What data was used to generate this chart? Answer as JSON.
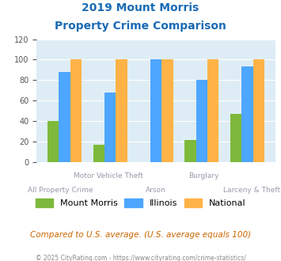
{
  "title_line1": "2019 Mount Morris",
  "title_line2": "Property Crime Comparison",
  "categories": [
    "All Property Crime",
    "Motor Vehicle Theft",
    "Arson",
    "Burglary",
    "Larceny & Theft"
  ],
  "x_labels_top": [
    "",
    "Motor Vehicle Theft",
    "",
    "Burglary",
    ""
  ],
  "x_labels_bottom": [
    "All Property Crime",
    "",
    "Arson",
    "",
    "Larceny & Theft"
  ],
  "mount_morris": [
    40,
    17,
    0,
    21,
    47
  ],
  "illinois": [
    88,
    68,
    100,
    80,
    93
  ],
  "national": [
    100,
    100,
    100,
    100,
    100
  ],
  "colors": {
    "mount_morris": "#7db93b",
    "illinois": "#4da6ff",
    "national": "#ffb347"
  },
  "ylim": [
    0,
    120
  ],
  "yticks": [
    0,
    20,
    40,
    60,
    80,
    100,
    120
  ],
  "bg_color": "#deedf5",
  "title_color": "#1a6bb5",
  "xlabel_color": "#9999aa",
  "subtitle_text": "Compared to U.S. average. (U.S. average equals 100)",
  "subtitle_color": "#cc6600",
  "footer_text": "© 2025 CityRating.com - https://www.cityrating.com/crime-statistics/",
  "footer_color": "#888888",
  "legend_labels": [
    "Mount Morris",
    "Illinois",
    "National"
  ]
}
